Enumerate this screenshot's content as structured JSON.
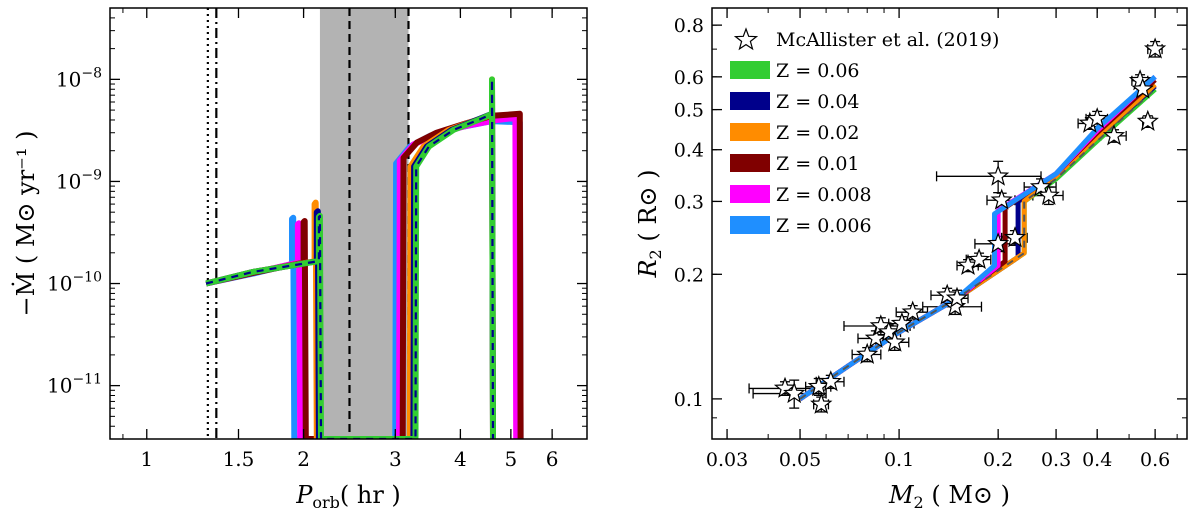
{
  "chart_data": [
    {
      "type": "line",
      "panel": "left",
      "title": "",
      "xlabel": "P",
      "xlabel_sub": "orb",
      "xlabel_unit": "( hr )",
      "ylabel": "−Ṁ ( M⊙ yr⁻¹ )",
      "xscale": "log",
      "yscale": "log",
      "xlim": [
        0.85,
        7.0
      ],
      "ylim": [
        3e-12,
        5e-08
      ],
      "xticks": [
        {
          "value": 1,
          "label": "1"
        },
        {
          "value": 1.5,
          "label": "1.5"
        },
        {
          "value": 2,
          "label": "2"
        },
        {
          "value": 3,
          "label": "3"
        },
        {
          "value": 4,
          "label": "4"
        },
        {
          "value": 5,
          "label": "5"
        },
        {
          "value": 6,
          "label": "6"
        }
      ],
      "yticks": [
        {
          "value": 1e-11,
          "base": "10",
          "exp": "−11"
        },
        {
          "value": 1e-10,
          "base": "10",
          "exp": "−10"
        },
        {
          "value": 1e-09,
          "base": "10",
          "exp": "−9"
        },
        {
          "value": 1e-08,
          "base": "10",
          "exp": "−8"
        }
      ],
      "period_gap": [
        2.15,
        3.18
      ],
      "vlines": [
        {
          "x": 1.31,
          "style": "dotted"
        },
        {
          "x": 1.36,
          "style": "dashdot"
        },
        {
          "x": 2.45,
          "style": "dashed"
        },
        {
          "x": 3.18,
          "style": "dashed"
        }
      ],
      "series": [
        {
          "name": "Z = 0.006",
          "color": "#1f8fff",
          "points": [
            [
              1.3,
              1e-10
            ],
            [
              1.6,
              1.25e-10
            ],
            [
              1.9,
              1.55e-10
            ],
            [
              1.9,
              4.3e-10
            ],
            [
              1.91,
              4.4e-10
            ],
            [
              1.92,
              3e-12
            ],
            [
              3.0,
              3e-12
            ],
            [
              3.01,
              1.5e-09
            ],
            [
              3.2,
              2.2e-09
            ],
            [
              3.5,
              2.8e-09
            ],
            [
              4.0,
              3.4e-09
            ],
            [
              4.6,
              3.9e-09
            ],
            [
              5.2,
              3.8e-09
            ],
            [
              5.22,
              3e-12
            ]
          ]
        },
        {
          "name": "Z = 0.008",
          "color": "#ff00ff",
          "points": [
            [
              1.3,
              1e-10
            ],
            [
              1.6,
              1.27e-10
            ],
            [
              1.95,
              1.6e-10
            ],
            [
              1.95,
              3.8e-10
            ],
            [
              1.96,
              3.9e-10
            ],
            [
              1.97,
              3e-12
            ],
            [
              3.05,
              3e-12
            ],
            [
              3.06,
              1.6e-09
            ],
            [
              3.25,
              2.3e-09
            ],
            [
              3.6,
              2.9e-09
            ],
            [
              4.1,
              3.5e-09
            ],
            [
              4.7,
              4e-09
            ],
            [
              5.1,
              4.2e-09
            ],
            [
              5.12,
              3e-12
            ]
          ]
        },
        {
          "name": "Z = 0.01",
          "color": "#800000",
          "points": [
            [
              1.3,
              1e-10
            ],
            [
              1.6,
              1.27e-10
            ],
            [
              2.0,
              1.6e-10
            ],
            [
              2.0,
              4e-10
            ],
            [
              2.01,
              4.1e-10
            ],
            [
              2.02,
              3e-12
            ],
            [
              3.1,
              3e-12
            ],
            [
              3.11,
              1.7e-09
            ],
            [
              3.3,
              2.4e-09
            ],
            [
              3.6,
              3e-09
            ],
            [
              4.1,
              3.7e-09
            ],
            [
              4.6,
              4.4e-09
            ],
            [
              5.2,
              4.6e-09
            ],
            [
              5.22,
              3e-12
            ]
          ]
        },
        {
          "name": "Z = 0.02",
          "color": "#ff8c00",
          "points": [
            [
              1.3,
              1e-10
            ],
            [
              1.6,
              1.3e-10
            ],
            [
              2.1,
              1.65e-10
            ],
            [
              2.1,
              6e-10
            ],
            [
              2.11,
              6.2e-10
            ],
            [
              2.12,
              3e-12
            ],
            [
              3.2,
              3e-12
            ],
            [
              3.21,
              1.4e-09
            ],
            [
              3.4,
              2.2e-09
            ],
            [
              3.8,
              3.2e-09
            ],
            [
              4.3,
              4e-09
            ],
            [
              4.6,
              4.5e-09
            ],
            [
              4.6,
              1e-08
            ],
            [
              4.62,
              3e-12
            ]
          ]
        },
        {
          "name": "Z = 0.04",
          "color": "#00008b",
          "points": [
            [
              1.3,
              1e-10
            ],
            [
              1.6,
              1.3e-10
            ],
            [
              2.12,
              1.65e-10
            ],
            [
              2.12,
              5e-10
            ],
            [
              2.13,
              5.1e-10
            ],
            [
              2.14,
              3e-12
            ],
            [
              3.25,
              3e-12
            ],
            [
              3.26,
              1.4e-09
            ],
            [
              3.45,
              2.2e-09
            ],
            [
              3.85,
              3.2e-09
            ],
            [
              4.35,
              4.1e-09
            ],
            [
              4.6,
              4.6e-09
            ],
            [
              4.6,
              9.5e-09
            ],
            [
              4.62,
              3e-12
            ]
          ]
        },
        {
          "name": "Z = 0.06",
          "color": "#32cd32",
          "points": [
            [
              1.3,
              1e-10
            ],
            [
              1.6,
              1.3e-10
            ],
            [
              2.14,
              1.66e-10
            ],
            [
              2.14,
              4.5e-10
            ],
            [
              2.15,
              4.6e-10
            ],
            [
              2.16,
              3e-12
            ],
            [
              3.28,
              3e-12
            ],
            [
              3.29,
              1.4e-09
            ],
            [
              3.48,
              2.2e-09
            ],
            [
              3.88,
              3.2e-09
            ],
            [
              4.38,
              4.1e-09
            ],
            [
              4.6,
              4.6e-09
            ],
            [
              4.6,
              1e-08
            ],
            [
              4.62,
              3e-12
            ]
          ]
        }
      ]
    },
    {
      "type": "scatter",
      "panel": "right",
      "title": "",
      "xlabel": "M",
      "xlabel_sub": "2",
      "xlabel_unit": "( M⊙ )",
      "ylabel": "R",
      "ylabel_sub": "2",
      "ylabel_unit": "( R⊙ )",
      "xscale": "log",
      "yscale": "log",
      "xlim": [
        0.027,
        0.75
      ],
      "ylim": [
        0.08,
        0.88
      ],
      "xticks": [
        {
          "value": 0.03,
          "label": "0.03"
        },
        {
          "value": 0.05,
          "label": "0.05"
        },
        {
          "value": 0.1,
          "label": "0.1"
        },
        {
          "value": 0.2,
          "label": "0.2"
        },
        {
          "value": 0.3,
          "label": "0.3"
        },
        {
          "value": 0.4,
          "label": "0.4"
        },
        {
          "value": 0.6,
          "label": "0.6"
        }
      ],
      "yticks": [
        {
          "value": 0.1,
          "label": "0.1"
        },
        {
          "value": 0.2,
          "label": "0.2"
        },
        {
          "value": 0.3,
          "label": "0.3"
        },
        {
          "value": 0.4,
          "label": "0.4"
        },
        {
          "value": 0.5,
          "label": "0.5"
        },
        {
          "value": 0.6,
          "label": "0.6"
        },
        {
          "value": 0.8,
          "label": "0.8"
        }
      ],
      "legend_position": "top-left",
      "observations": {
        "name": "McAllister et al. (2019)",
        "points": [
          {
            "x": 0.045,
            "y": 0.106,
            "xerr": 0.01,
            "yerr": 0.004
          },
          {
            "x": 0.048,
            "y": 0.103,
            "xerr": 0.012,
            "yerr": 0.008
          },
          {
            "x": 0.057,
            "y": 0.107,
            "xerr": 0.005,
            "yerr": 0.005
          },
          {
            "x": 0.058,
            "y": 0.097,
            "xerr": 0.003,
            "yerr": 0.004
          },
          {
            "x": 0.062,
            "y": 0.11,
            "xerr": 0.006,
            "yerr": 0.004
          },
          {
            "x": 0.08,
            "y": 0.128,
            "xerr": 0.008,
            "yerr": 0.005
          },
          {
            "x": 0.085,
            "y": 0.14,
            "xerr": 0.01,
            "yerr": 0.006
          },
          {
            "x": 0.088,
            "y": 0.15,
            "xerr": 0.02,
            "yerr": 0.007
          },
          {
            "x": 0.093,
            "y": 0.145,
            "xerr": 0.008,
            "yerr": 0.006
          },
          {
            "x": 0.097,
            "y": 0.137,
            "xerr": 0.01,
            "yerr": 0.006
          },
          {
            "x": 0.102,
            "y": 0.152,
            "xerr": 0.009,
            "yerr": 0.006
          },
          {
            "x": 0.11,
            "y": 0.162,
            "xerr": 0.012,
            "yerr": 0.006
          },
          {
            "x": 0.14,
            "y": 0.178,
            "xerr": 0.015,
            "yerr": 0.007
          },
          {
            "x": 0.148,
            "y": 0.167,
            "xerr": 0.03,
            "yerr": 0.007
          },
          {
            "x": 0.15,
            "y": 0.175,
            "xerr": 0.012,
            "yerr": 0.008
          },
          {
            "x": 0.162,
            "y": 0.21,
            "xerr": 0.012,
            "yerr": 0.007
          },
          {
            "x": 0.175,
            "y": 0.217,
            "xerr": 0.015,
            "yerr": 0.008
          },
          {
            "x": 0.2,
            "y": 0.237,
            "xerr": 0.03,
            "yerr": 0.01
          },
          {
            "x": 0.205,
            "y": 0.302,
            "xerr": 0.02,
            "yerr": 0.012
          },
          {
            "x": 0.2,
            "y": 0.345,
            "xerr": 0.07,
            "yerr": 0.03
          },
          {
            "x": 0.225,
            "y": 0.245,
            "xerr": 0.02,
            "yerr": 0.01
          },
          {
            "x": 0.27,
            "y": 0.325,
            "xerr": 0.03,
            "yerr": 0.015
          },
          {
            "x": 0.285,
            "y": 0.31,
            "xerr": 0.03,
            "yerr": 0.015
          },
          {
            "x": 0.38,
            "y": 0.463,
            "xerr": 0.03,
            "yerr": 0.015
          },
          {
            "x": 0.4,
            "y": 0.475,
            "xerr": 0.03,
            "yerr": 0.02
          },
          {
            "x": 0.45,
            "y": 0.432,
            "xerr": 0.04,
            "yerr": 0.015
          },
          {
            "x": 0.54,
            "y": 0.587,
            "xerr": 0.03,
            "yerr": 0.02
          },
          {
            "x": 0.55,
            "y": 0.56,
            "xerr": 0.02,
            "yerr": 0.02
          },
          {
            "x": 0.57,
            "y": 0.468,
            "xerr": 0.02,
            "yerr": 0.015
          },
          {
            "x": 0.6,
            "y": 0.7,
            "xerr": 0.03,
            "yerr": 0.03
          }
        ]
      },
      "series": [
        {
          "name": "Z = 0.06",
          "color": "#32cd32",
          "points": [
            [
              0.05,
              0.1
            ],
            [
              0.07,
              0.12
            ],
            [
              0.1,
              0.145
            ],
            [
              0.15,
              0.175
            ],
            [
              0.24,
              0.225
            ],
            [
              0.24,
              0.3
            ],
            [
              0.3,
              0.34
            ],
            [
              0.4,
              0.42
            ],
            [
              0.6,
              0.56
            ]
          ]
        },
        {
          "name": "Z = 0.04",
          "color": "#00008b",
          "points": [
            [
              0.05,
              0.1
            ],
            [
              0.07,
              0.12
            ],
            [
              0.1,
              0.145
            ],
            [
              0.15,
              0.175
            ],
            [
              0.23,
              0.22
            ],
            [
              0.23,
              0.3
            ],
            [
              0.3,
              0.345
            ],
            [
              0.4,
              0.43
            ],
            [
              0.6,
              0.57
            ]
          ]
        },
        {
          "name": "Z = 0.02",
          "color": "#ff8c00",
          "points": [
            [
              0.05,
              0.1
            ],
            [
              0.07,
              0.12
            ],
            [
              0.1,
              0.145
            ],
            [
              0.15,
              0.175
            ],
            [
              0.24,
              0.225
            ],
            [
              0.24,
              0.3
            ],
            [
              0.3,
              0.345
            ],
            [
              0.4,
              0.43
            ],
            [
              0.6,
              0.575
            ]
          ]
        },
        {
          "name": "Z = 0.01",
          "color": "#800000",
          "points": [
            [
              0.05,
              0.1
            ],
            [
              0.07,
              0.12
            ],
            [
              0.1,
              0.145
            ],
            [
              0.15,
              0.175
            ],
            [
              0.21,
              0.215
            ],
            [
              0.21,
              0.29
            ],
            [
              0.3,
              0.35
            ],
            [
              0.4,
              0.44
            ],
            [
              0.6,
              0.59
            ]
          ]
        },
        {
          "name": "Z = 0.008",
          "color": "#ff00ff",
          "points": [
            [
              0.05,
              0.1
            ],
            [
              0.07,
              0.12
            ],
            [
              0.1,
              0.145
            ],
            [
              0.15,
              0.175
            ],
            [
              0.2,
              0.21
            ],
            [
              0.2,
              0.285
            ],
            [
              0.3,
              0.35
            ],
            [
              0.4,
              0.445
            ],
            [
              0.6,
              0.6
            ]
          ]
        },
        {
          "name": "Z = 0.006",
          "color": "#1f8fff",
          "points": [
            [
              0.05,
              0.1
            ],
            [
              0.07,
              0.12
            ],
            [
              0.1,
              0.145
            ],
            [
              0.15,
              0.175
            ],
            [
              0.195,
              0.21
            ],
            [
              0.195,
              0.28
            ],
            [
              0.3,
              0.35
            ],
            [
              0.4,
              0.45
            ],
            [
              0.6,
              0.6
            ]
          ]
        }
      ]
    }
  ]
}
